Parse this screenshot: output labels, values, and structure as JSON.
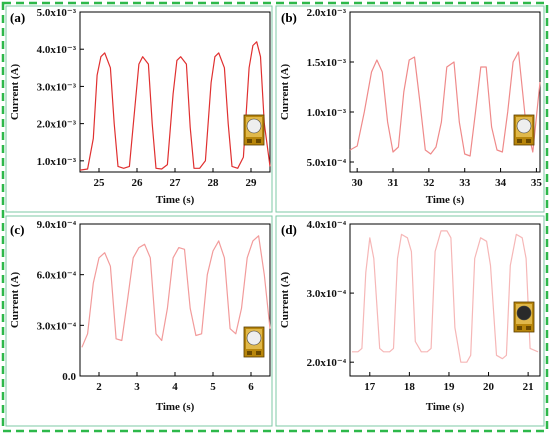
{
  "figure": {
    "border_color": "#2db84a",
    "panel_border_color": "#7ec9a5"
  },
  "chart_data": [
    {
      "type": "line",
      "panel_label": "(a)",
      "xlabel": "Time (s)",
      "ylabel": "Current (A)",
      "xlim": [
        24.5,
        29.5
      ],
      "ylim": [
        0.0007,
        0.005
      ],
      "xticks": [
        25,
        26,
        27,
        28,
        29
      ],
      "xtick_labels": [
        "25",
        "26",
        "27",
        "28",
        "29"
      ],
      "yticks": [
        0.001,
        0.002,
        0.003,
        0.004,
        0.005
      ],
      "ytick_labels": [
        "1.0x10⁻³",
        "2.0x10⁻³",
        "3.0x10⁻³",
        "4.0x10⁻³",
        "5.0x10⁻³"
      ],
      "color": "#e03030",
      "grid": false,
      "inset": "device-photo-light-on",
      "series": [
        {
          "x": [
            24.5,
            24.7,
            24.85,
            24.95,
            25.05,
            25.15,
            25.3,
            25.4,
            25.5,
            25.65,
            25.8,
            25.95,
            26.05,
            26.15,
            26.3,
            26.4,
            26.5,
            26.65,
            26.8,
            26.95,
            27.05,
            27.15,
            27.3,
            27.4,
            27.5,
            27.65,
            27.8,
            27.95,
            28.05,
            28.15,
            28.3,
            28.4,
            28.5,
            28.65,
            28.8,
            28.95,
            29.05,
            29.15,
            29.25,
            29.35,
            29.5
          ],
          "y": [
            0.00075,
            0.00078,
            0.0016,
            0.0033,
            0.0038,
            0.0039,
            0.0035,
            0.002,
            0.00085,
            0.0008,
            0.00085,
            0.0025,
            0.0036,
            0.0038,
            0.0036,
            0.002,
            0.0008,
            0.00078,
            0.0009,
            0.0028,
            0.0037,
            0.0038,
            0.0036,
            0.0019,
            0.0008,
            0.0008,
            0.001,
            0.0031,
            0.0038,
            0.0039,
            0.0035,
            0.002,
            0.00085,
            0.0008,
            0.0011,
            0.0035,
            0.0041,
            0.0042,
            0.0038,
            0.002,
            0.00085
          ]
        }
      ]
    },
    {
      "type": "line",
      "panel_label": "(b)",
      "xlabel": "Time (s)",
      "ylabel": "Current (A)",
      "xlim": [
        29.8,
        35.1
      ],
      "ylim": [
        0.0004,
        0.002
      ],
      "xticks": [
        30,
        31,
        32,
        33,
        34,
        35
      ],
      "xtick_labels": [
        "30",
        "31",
        "32",
        "33",
        "34",
        "35"
      ],
      "yticks": [
        0.0005,
        0.001,
        0.0015,
        0.002
      ],
      "ytick_labels": [
        "5.0x10⁻⁴",
        "1.0x10⁻³",
        "1.5x10⁻³",
        "2.0x10⁻³"
      ],
      "color": "#ef8a8a",
      "grid": false,
      "inset": "device-photo-light-on",
      "series": [
        {
          "x": [
            29.8,
            30.0,
            30.2,
            30.4,
            30.55,
            30.7,
            30.85,
            31.0,
            31.15,
            31.3,
            31.45,
            31.6,
            31.75,
            31.9,
            32.05,
            32.2,
            32.35,
            32.5,
            32.7,
            32.85,
            33.0,
            33.15,
            33.3,
            33.45,
            33.6,
            33.75,
            33.9,
            34.05,
            34.2,
            34.35,
            34.5,
            34.7,
            34.9,
            35.1
          ],
          "y": [
            0.00062,
            0.00066,
            0.001,
            0.0014,
            0.00152,
            0.0014,
            0.0009,
            0.0006,
            0.00065,
            0.0012,
            0.00152,
            0.00155,
            0.0011,
            0.00062,
            0.00058,
            0.00065,
            0.0009,
            0.00145,
            0.0015,
            0.0009,
            0.00058,
            0.00056,
            0.001,
            0.00145,
            0.00145,
            0.00085,
            0.00062,
            0.0006,
            0.001,
            0.0015,
            0.0016,
            0.0009,
            0.0006,
            0.0013
          ]
        }
      ]
    },
    {
      "type": "line",
      "panel_label": "(c)",
      "xlabel": "Time (s)",
      "ylabel": "Current (A)",
      "xlim": [
        1.5,
        6.5
      ],
      "ylim": [
        0.0,
        0.0009
      ],
      "xticks": [
        2,
        3,
        4,
        5,
        6
      ],
      "xtick_labels": [
        "2",
        "3",
        "4",
        "5",
        "6"
      ],
      "yticks": [
        0.0,
        0.0003,
        0.0006,
        0.0009
      ],
      "ytick_labels": [
        "0.0",
        "3.0x10⁻⁴",
        "6.0x10⁻⁴",
        "9.0x10⁻⁴"
      ],
      "color": "#f29b9b",
      "grid": false,
      "inset": "device-photo-light-on",
      "series": [
        {
          "x": [
            1.55,
            1.7,
            1.85,
            2.0,
            2.15,
            2.3,
            2.45,
            2.6,
            2.75,
            2.9,
            3.05,
            3.2,
            3.35,
            3.5,
            3.65,
            3.8,
            3.95,
            4.1,
            4.25,
            4.4,
            4.55,
            4.7,
            4.85,
            5.0,
            5.15,
            5.3,
            5.45,
            5.6,
            5.75,
            5.9,
            6.05,
            6.2,
            6.35,
            6.5
          ],
          "y": [
            0.00017,
            0.00025,
            0.00055,
            0.0007,
            0.00073,
            0.00065,
            0.00022,
            0.00021,
            0.00045,
            0.0007,
            0.00076,
            0.00078,
            0.0007,
            0.00025,
            0.00021,
            0.0004,
            0.0007,
            0.00076,
            0.00075,
            0.0004,
            0.00024,
            0.00025,
            0.0006,
            0.00074,
            0.0008,
            0.0007,
            0.00028,
            0.00025,
            0.0004,
            0.0007,
            0.0008,
            0.00083,
            0.0006,
            0.00028
          ]
        }
      ]
    },
    {
      "type": "line",
      "panel_label": "(d)",
      "xlabel": "Time (s)",
      "ylabel": "Current (A)",
      "xlim": [
        16.5,
        21.3
      ],
      "ylim": [
        0.00018,
        0.0004
      ],
      "xticks": [
        17,
        18,
        19,
        20,
        21
      ],
      "xtick_labels": [
        "17",
        "18",
        "19",
        "20",
        "21"
      ],
      "yticks": [
        0.0002,
        0.0003,
        0.0004
      ],
      "ytick_labels": [
        "2.0x10⁻⁴",
        "3.0x10⁻⁴",
        "4.0x10⁻⁴"
      ],
      "color": "#f6b7b7",
      "grid": false,
      "inset": "device-photo-light-off",
      "series": [
        {
          "x": [
            16.55,
            16.7,
            16.8,
            16.9,
            17.0,
            17.1,
            17.25,
            17.35,
            17.5,
            17.6,
            17.7,
            17.8,
            17.95,
            18.05,
            18.15,
            18.3,
            18.45,
            18.55,
            18.65,
            18.8,
            18.95,
            19.05,
            19.15,
            19.3,
            19.45,
            19.55,
            19.65,
            19.8,
            19.95,
            20.05,
            20.2,
            20.35,
            20.45,
            20.55,
            20.7,
            20.85,
            20.95,
            21.05,
            21.25
          ],
          "y": [
            0.000215,
            0.000215,
            0.00022,
            0.00033,
            0.00038,
            0.00035,
            0.00022,
            0.000215,
            0.000215,
            0.00022,
            0.00035,
            0.000385,
            0.00038,
            0.00036,
            0.00023,
            0.000215,
            0.000215,
            0.00022,
            0.00036,
            0.00039,
            0.00039,
            0.00038,
            0.00025,
            0.0002,
            0.0002,
            0.00021,
            0.00035,
            0.00038,
            0.000375,
            0.00034,
            0.00021,
            0.000205,
            0.00021,
            0.00034,
            0.000385,
            0.00038,
            0.00035,
            0.00022,
            0.000215
          ]
        }
      ]
    }
  ]
}
